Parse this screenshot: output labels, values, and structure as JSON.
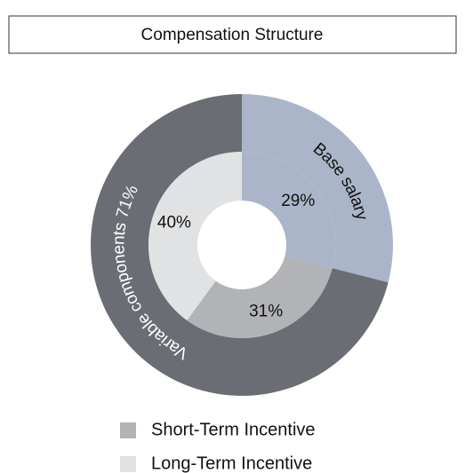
{
  "chart_data": {
    "type": "nested-donut",
    "title": "Compensation Structure",
    "rings": [
      {
        "values": [
          29,
          71
        ],
        "labels": [
          "Base salary",
          "Variable components 71%"
        ],
        "colors": [
          "#aab5c9",
          "#6a6d73"
        ]
      },
      {
        "values": [
          29,
          31,
          40
        ],
        "value_labels": [
          "29%",
          "31%",
          "40%"
        ],
        "names": [
          null,
          "Short-Term Incentive",
          "Long-Term Incentive"
        ],
        "colors": [
          "#aab5c9",
          "#b1b3b6",
          "#e1e2e4"
        ]
      }
    ]
  }
}
